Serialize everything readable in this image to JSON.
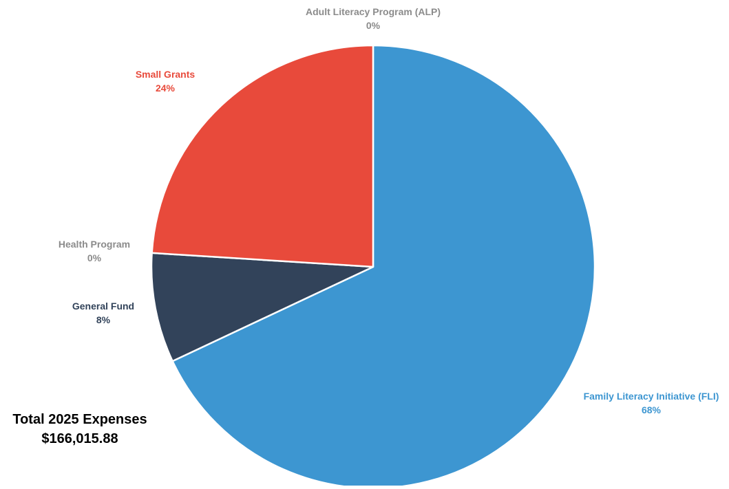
{
  "chart_data": {
    "type": "pie",
    "slices": [
      {
        "label": "Family Literacy Initiative (FLI)",
        "pct_label": "68%",
        "value": 68,
        "color": "#3d96d1"
      },
      {
        "label": "General Fund",
        "pct_label": "8%",
        "value": 8,
        "color": "#32435a"
      },
      {
        "label": "Health Program",
        "pct_label": "0%",
        "value": 0,
        "color": "#8b8b8b"
      },
      {
        "label": "Small Grants",
        "pct_label": "24%",
        "value": 24,
        "color": "#e84a3b"
      },
      {
        "label": "Adult Literacy Program (ALP)",
        "pct_label": "0%",
        "value": 0,
        "color": "#8b8b8b"
      }
    ],
    "start_angle_deg": 0,
    "direction": "clockwise",
    "slice_border_color": "#ffffff"
  },
  "summary": {
    "title": "Total 2025 Expenses",
    "amount": "$166,015.88"
  }
}
